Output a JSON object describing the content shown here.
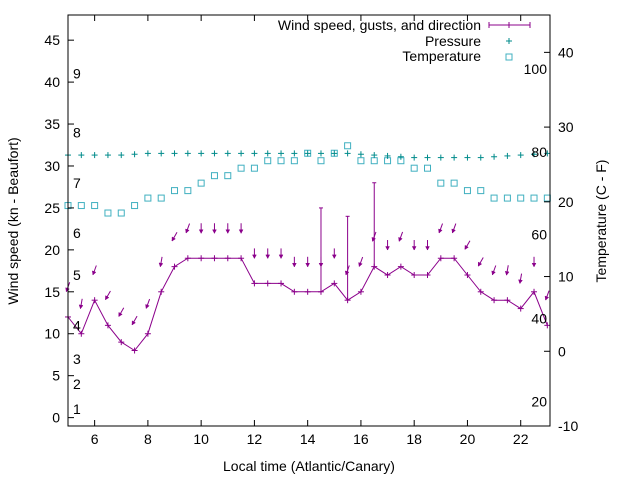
{
  "chart_data": {
    "type": "line",
    "xlabel": "Local time (Atlantic/Canary)",
    "ylabel": "Wind speed (kn - Beaufort)",
    "y2label": "Temperature (C - F)",
    "xlim": [
      5,
      23.1
    ],
    "ylim": [
      -1,
      48
    ],
    "y2lim": [
      -10,
      45
    ],
    "x_ticks": [
      6,
      8,
      10,
      12,
      14,
      16,
      18,
      20,
      22
    ],
    "y_ticks": [
      0,
      5,
      10,
      15,
      20,
      25,
      30,
      35,
      40,
      45
    ],
    "y2_ticks": [
      -10,
      0,
      10,
      20,
      30,
      40
    ],
    "beaufort_labels": [
      {
        "label": "1",
        "kn": 1
      },
      {
        "label": "2",
        "kn": 4
      },
      {
        "label": "3",
        "kn": 7
      },
      {
        "label": "4",
        "kn": 11
      },
      {
        "label": "5",
        "kn": 17
      },
      {
        "label": "6",
        "kn": 22
      },
      {
        "label": "7",
        "kn": 28
      },
      {
        "label": "8",
        "kn": 34
      },
      {
        "label": "9",
        "kn": 41
      }
    ],
    "fahrenheit_labels": [
      {
        "label": "20",
        "celsius": -6.7
      },
      {
        "label": "40",
        "celsius": 4.4
      },
      {
        "label": "60",
        "celsius": 15.6
      },
      {
        "label": "80",
        "celsius": 26.7
      },
      {
        "label": "100",
        "celsius": 37.8
      }
    ],
    "legend_position": "top-right",
    "series": [
      {
        "name": "Wind speed, gusts, and direction",
        "color": "#8b008b",
        "x": [
          5,
          5.5,
          6,
          6.5,
          7,
          7.5,
          8,
          8.5,
          9,
          9.5,
          10,
          10.5,
          11,
          11.5,
          12,
          12.5,
          13,
          13.5,
          14,
          14.5,
          15,
          15.5,
          16,
          16.5,
          17,
          17.5,
          18,
          18.5,
          19,
          19.5,
          20,
          20.5,
          21,
          21.5,
          22,
          22.5,
          23
        ],
        "speed": [
          12,
          10,
          14,
          11,
          9,
          8,
          10,
          15,
          18,
          19,
          19,
          19,
          19,
          19,
          16,
          16,
          16,
          15,
          15,
          15,
          16,
          14,
          15,
          18,
          17,
          18,
          17,
          17,
          19,
          19,
          17,
          15,
          14,
          14,
          13,
          15,
          11
        ],
        "gust": [
          null,
          null,
          null,
          null,
          null,
          null,
          null,
          null,
          null,
          null,
          null,
          null,
          null,
          null,
          null,
          null,
          null,
          null,
          null,
          25,
          null,
          24,
          null,
          28,
          null,
          null,
          null,
          null,
          null,
          null,
          null,
          null,
          null,
          null,
          null,
          null,
          null
        ],
        "direction_deg": [
          20,
          10,
          20,
          30,
          30,
          30,
          20,
          10,
          30,
          20,
          0,
          0,
          0,
          0,
          0,
          0,
          0,
          0,
          0,
          0,
          0,
          20,
          20,
          20,
          0,
          20,
          0,
          0,
          20,
          20,
          30,
          30,
          20,
          10,
          10,
          0,
          20
        ]
      },
      {
        "name": "Pressure",
        "color": "#008b8b",
        "x": [
          5,
          5.5,
          6,
          6.5,
          7,
          7.5,
          8,
          8.5,
          9,
          9.5,
          10,
          10.5,
          11,
          11.5,
          12,
          12.5,
          13,
          13.5,
          14,
          14.5,
          15,
          15.5,
          16,
          16.5,
          17,
          17.5,
          18,
          18.5,
          19,
          19.5,
          20,
          20.5,
          21,
          21.5,
          22,
          22.5,
          23
        ],
        "values": [
          31.3,
          31.3,
          31.3,
          31.3,
          31.3,
          31.4,
          31.5,
          31.5,
          31.5,
          31.5,
          31.5,
          31.5,
          31.5,
          31.5,
          31.5,
          31.5,
          31.5,
          31.5,
          31.5,
          31.5,
          31.5,
          31.5,
          31.4,
          31.3,
          31.2,
          31.1,
          31.0,
          31.0,
          31.0,
          31.0,
          31.0,
          31.0,
          31.1,
          31.2,
          31.3,
          31.4,
          31.5
        ]
      },
      {
        "name": "Temperature",
        "color": "#40b0c0",
        "x": [
          5,
          5.5,
          6,
          6.5,
          7,
          7.5,
          8,
          8.5,
          9,
          9.5,
          10,
          10.5,
          11,
          11.5,
          12,
          12.5,
          13,
          13.5,
          14,
          14.5,
          15,
          15.5,
          16,
          16.5,
          17,
          17.5,
          18,
          18.5,
          19,
          19.5,
          20,
          20.5,
          21,
          21.5,
          22,
          22.5,
          23
        ],
        "values": [
          19.5,
          19.5,
          19.5,
          18.5,
          18.5,
          19.5,
          20.5,
          20.5,
          21.5,
          21.5,
          22.5,
          23.5,
          23.5,
          24.5,
          24.5,
          25.5,
          25.5,
          25.5,
          26.5,
          25.5,
          26.5,
          27.5,
          25.5,
          25.5,
          25.5,
          25.5,
          24.5,
          24.5,
          22.5,
          22.5,
          21.5,
          21.5,
          20.5,
          20.5,
          20.5,
          20.5,
          20.5
        ]
      }
    ]
  }
}
